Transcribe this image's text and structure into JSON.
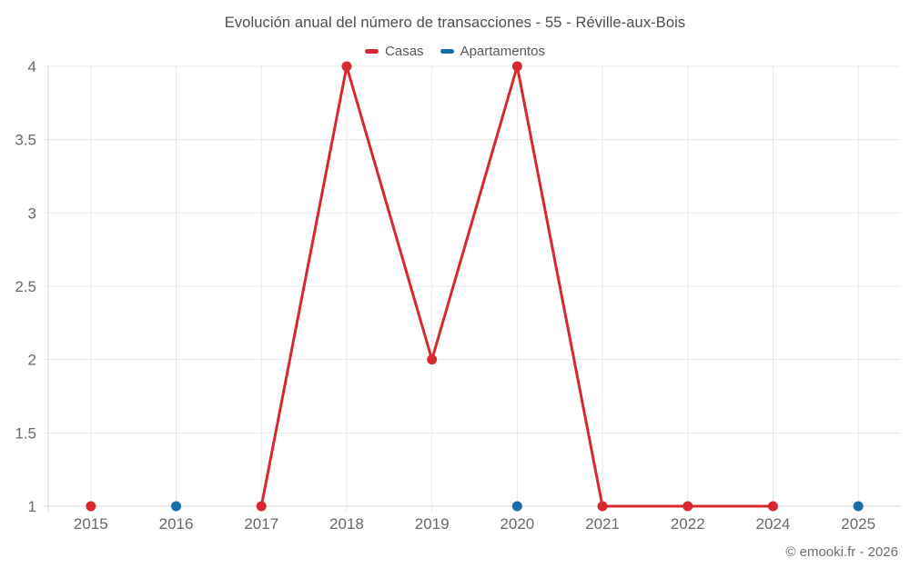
{
  "chart_data": {
    "type": "line",
    "title": "Evolución anual del número de transacciones - 55 - Réville-aux-Bois",
    "categories": [
      "2015",
      "2016",
      "2017",
      "2018",
      "2019",
      "2020",
      "2021",
      "2022",
      "2024",
      "2025"
    ],
    "series": [
      {
        "name": "Casas",
        "color": "#d7282f",
        "values": [
          1,
          null,
          1,
          4,
          2,
          4,
          1,
          1,
          1,
          null
        ]
      },
      {
        "name": "Apartamentos",
        "color": "#1a6da6",
        "values": [
          null,
          1,
          null,
          null,
          null,
          1,
          null,
          null,
          null,
          1
        ]
      }
    ],
    "ylim": [
      1,
      4
    ],
    "yticks": [
      1,
      1.5,
      2,
      2.5,
      3,
      3.5,
      4
    ],
    "grid": true,
    "legend_position": "top",
    "span_gaps": false,
    "footer": "© emooki.fr - 2026"
  }
}
